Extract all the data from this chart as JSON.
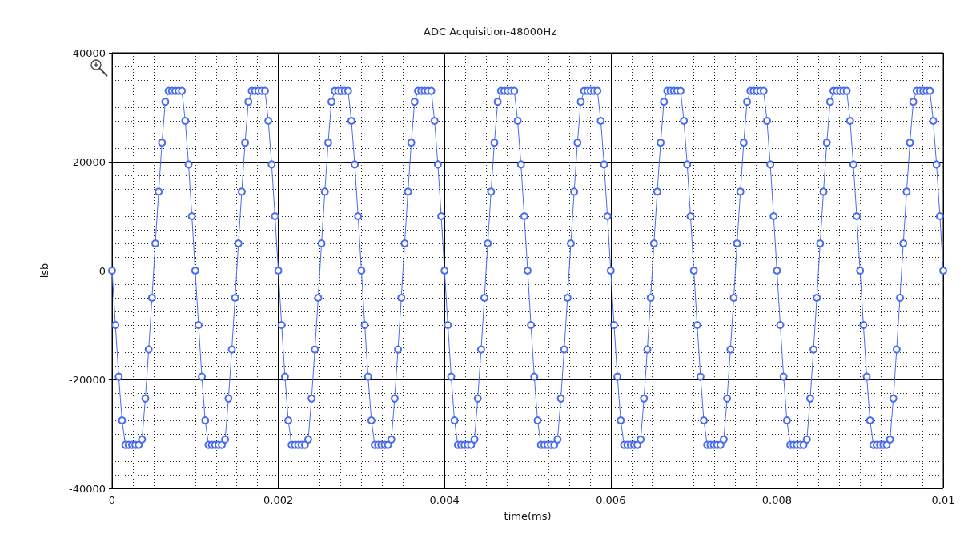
{
  "chart_data": {
    "type": "line",
    "title": "ADC Acquisition-48000Hz",
    "xlabel": "time(ms)",
    "ylabel": "lsb",
    "xlim": [
      0,
      0.01
    ],
    "xticks": [
      0,
      0.002,
      0.004,
      0.006,
      0.008,
      0.01
    ],
    "ylim": [
      -40000,
      40000
    ],
    "yticks": [
      -40000,
      -20000,
      0,
      20000,
      40000
    ],
    "grid": true,
    "marker": "circle",
    "line_style": "solid",
    "x": [
      0,
      4e-05,
      8e-05,
      0.00012,
      0.00016,
      0.0002,
      0.00024,
      0.00028,
      0.00032,
      0.00036,
      0.0004,
      0.00044,
      0.00048,
      0.00052,
      0.00056,
      0.0006,
      0.00064,
      0.00068,
      0.00072,
      0.00076,
      0.0008,
      0.00084,
      0.00088,
      0.00092,
      0.00096,
      0.001,
      0.00104,
      0.00108,
      0.00112,
      0.00116,
      0.0012,
      0.00124,
      0.00128,
      0.00132,
      0.00136,
      0.0014,
      0.00144,
      0.00148,
      0.00152,
      0.00156,
      0.0016,
      0.00164,
      0.00168,
      0.00172,
      0.00176,
      0.0018,
      0.00184,
      0.00188,
      0.00192,
      0.00196,
      0.002,
      0.00204,
      0.00208,
      0.00212,
      0.00216,
      0.0022,
      0.00224,
      0.00228,
      0.00232,
      0.00236,
      0.0024,
      0.00244,
      0.00248,
      0.00252,
      0.00256,
      0.0026,
      0.00264,
      0.00268,
      0.00272,
      0.00276,
      0.0028,
      0.00284,
      0.00288,
      0.00292,
      0.00296,
      0.003,
      0.00304,
      0.00308,
      0.00312,
      0.00316,
      0.0032,
      0.00324,
      0.00328,
      0.00332,
      0.00336,
      0.0034,
      0.00344,
      0.00348,
      0.00352,
      0.00356,
      0.0036,
      0.00364,
      0.00368,
      0.00372,
      0.00376,
      0.0038,
      0.00384,
      0.00388,
      0.00392,
      0.00396,
      0.004,
      0.00404,
      0.00408,
      0.00412,
      0.00416,
      0.0042,
      0.00424,
      0.00428,
      0.00432,
      0.00436,
      0.0044,
      0.00444,
      0.00448,
      0.00452,
      0.00456,
      0.0046,
      0.00464,
      0.00468,
      0.00472,
      0.00476,
      0.0048,
      0.00484,
      0.00488,
      0.00492,
      0.00496,
      0.005,
      0.00504,
      0.00508,
      0.00512,
      0.00516,
      0.0052,
      0.00524,
      0.00528,
      0.00532,
      0.00536,
      0.0054,
      0.00544,
      0.00548,
      0.00552,
      0.00556,
      0.0056,
      0.00564,
      0.00568,
      0.00572,
      0.00576,
      0.0058,
      0.00584,
      0.00588,
      0.00592,
      0.00596,
      0.006,
      0.00604,
      0.00608,
      0.00612,
      0.00616,
      0.0062,
      0.00624,
      0.00628,
      0.00632,
      0.00636,
      0.0064,
      0.00644,
      0.00648,
      0.00652,
      0.00656,
      0.0066,
      0.00664,
      0.00668,
      0.00672,
      0.00676,
      0.0068,
      0.00684,
      0.00688,
      0.00692,
      0.00696,
      0.007,
      0.00704,
      0.00708,
      0.00712,
      0.00716,
      0.0072,
      0.00724,
      0.00728,
      0.00732,
      0.00736,
      0.0074,
      0.00744,
      0.00748,
      0.00752,
      0.00756,
      0.0076,
      0.00764,
      0.00768,
      0.00772,
      0.00776,
      0.0078,
      0.00784,
      0.00788,
      0.00792,
      0.00796,
      0.008,
      0.00804,
      0.00808,
      0.00812,
      0.00816,
      0.0082,
      0.00824,
      0.00828,
      0.00832,
      0.00836,
      0.0084,
      0.00844,
      0.00848,
      0.00852,
      0.00856,
      0.0086,
      0.00864,
      0.00868,
      0.00872,
      0.00876,
      0.0088,
      0.00884,
      0.00888,
      0.00892,
      0.00896,
      0.009,
      0.00904,
      0.00908,
      0.00912,
      0.00916,
      0.0092,
      0.00924,
      0.00928,
      0.00932,
      0.00936,
      0.0094,
      0.00944,
      0.00948,
      0.00952,
      0.00956,
      0.0096,
      0.00964,
      0.00968,
      0.00972,
      0.00976,
      0.0098,
      0.00984,
      0.00988,
      0.00992,
      0.00996,
      0.01
    ],
    "series": [
      {
        "color": "#4a6cf0",
        "values": [
          0,
          -10000,
          -19500,
          -27500,
          -32000,
          -32000,
          -32000,
          -32000,
          -32000,
          -31000,
          -23500,
          -14500,
          -5000,
          5000,
          14500,
          23500,
          31000,
          33000,
          33000,
          33000,
          33000,
          33000,
          27500,
          19500,
          10000,
          0,
          -10000,
          -19500,
          -27500,
          -32000,
          -32000,
          -32000,
          -32000,
          -32000,
          -31000,
          -23500,
          -14500,
          -5000,
          5000,
          14500,
          23500,
          31000,
          33000,
          33000,
          33000,
          33000,
          33000,
          27500,
          19500,
          10000,
          0,
          -10000,
          -19500,
          -27500,
          -32000,
          -32000,
          -32000,
          -32000,
          -32000,
          -31000,
          -23500,
          -14500,
          -5000,
          5000,
          14500,
          23500,
          31000,
          33000,
          33000,
          33000,
          33000,
          33000,
          27500,
          19500,
          10000,
          0,
          -10000,
          -19500,
          -27500,
          -32000,
          -32000,
          -32000,
          -32000,
          -32000,
          -31000,
          -23500,
          -14500,
          -5000,
          5000,
          14500,
          23500,
          31000,
          33000,
          33000,
          33000,
          33000,
          33000,
          27500,
          19500,
          10000,
          0,
          -10000,
          -19500,
          -27500,
          -32000,
          -32000,
          -32000,
          -32000,
          -32000,
          -31000,
          -23500,
          -14500,
          -5000,
          5000,
          14500,
          23500,
          31000,
          33000,
          33000,
          33000,
          33000,
          33000,
          27500,
          19500,
          10000,
          0,
          -10000,
          -19500,
          -27500,
          -32000,
          -32000,
          -32000,
          -32000,
          -32000,
          -31000,
          -23500,
          -14500,
          -5000,
          5000,
          14500,
          23500,
          31000,
          33000,
          33000,
          33000,
          33000,
          33000,
          27500,
          19500,
          10000,
          0,
          -10000,
          -19500,
          -27500,
          -32000,
          -32000,
          -32000,
          -32000,
          -32000,
          -31000,
          -23500,
          -14500,
          -5000,
          5000,
          14500,
          23500,
          31000,
          33000,
          33000,
          33000,
          33000,
          33000,
          27500,
          19500,
          10000,
          0,
          -10000,
          -19500,
          -27500,
          -32000,
          -32000,
          -32000,
          -32000,
          -32000,
          -31000,
          -23500,
          -14500,
          -5000,
          5000,
          14500,
          23500,
          31000,
          33000,
          33000,
          33000,
          33000,
          33000,
          27500,
          19500,
          10000,
          0,
          -10000,
          -19500,
          -27500,
          -32000,
          -32000,
          -32000,
          -32000,
          -32000,
          -31000,
          -23500,
          -14500,
          -5000,
          5000,
          14500,
          23500,
          31000,
          33000,
          33000,
          33000,
          33000,
          33000,
          27500,
          19500,
          10000,
          0,
          -10000,
          -19500,
          -27500,
          -32000,
          -32000,
          -32000,
          -32000,
          -32000,
          -31000,
          -23500,
          -14500,
          -5000,
          5000,
          14500,
          23500,
          31000,
          33000,
          33000,
          33000,
          33000,
          33000,
          27500,
          19500,
          10000,
          0
        ]
      }
    ]
  }
}
